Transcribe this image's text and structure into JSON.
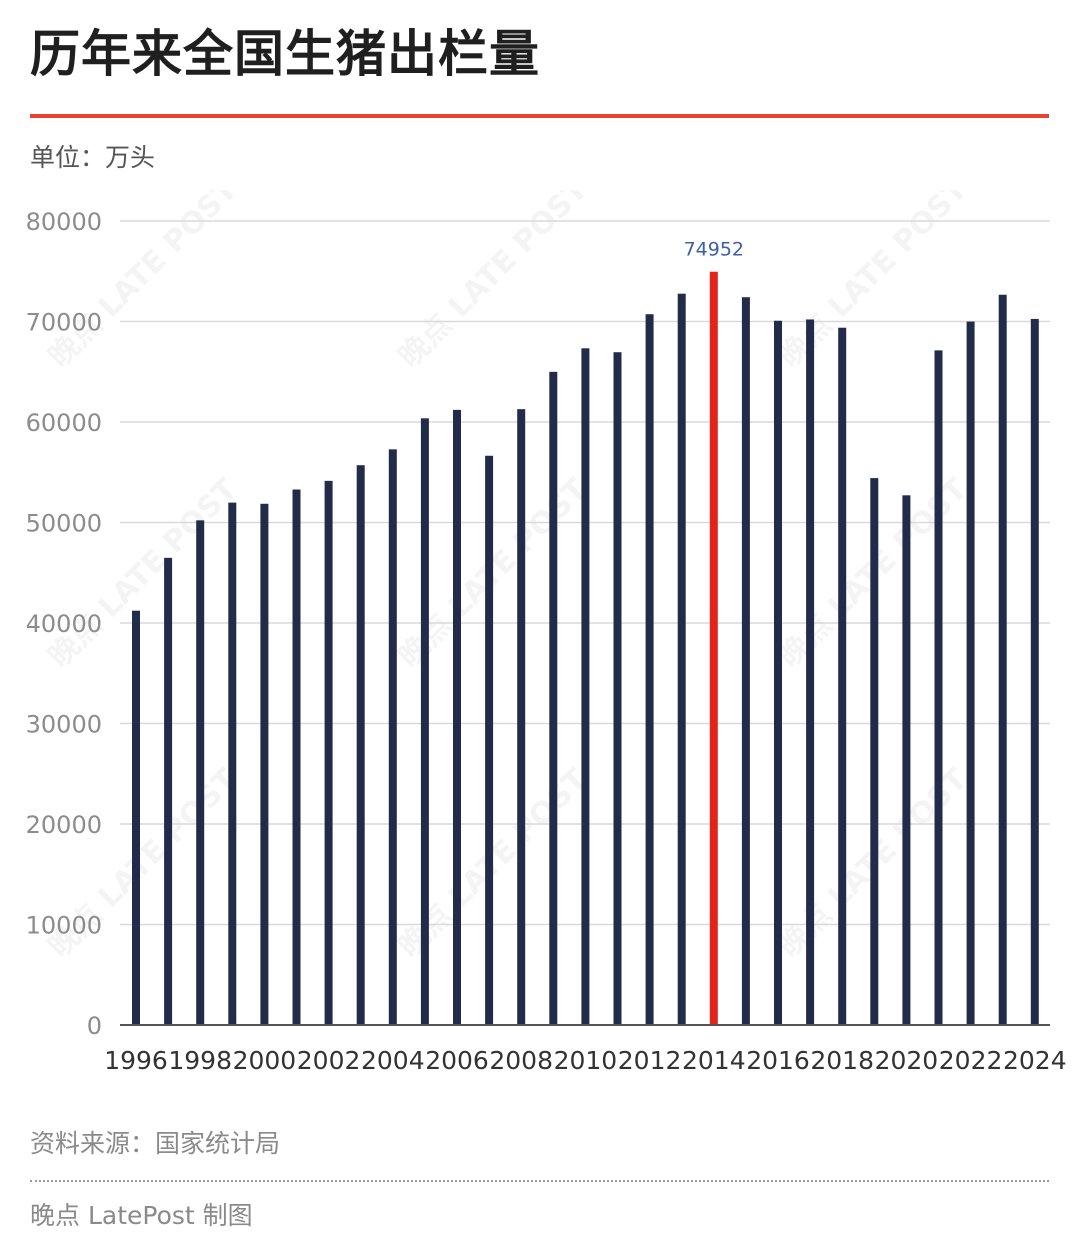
{
  "header": {
    "title": "历年来全国生猪出栏量",
    "unit": "单位：万头"
  },
  "footer": {
    "source": "资料来源：国家统计局",
    "credit": "晚点 LatePost 制图"
  },
  "chart_data": {
    "type": "bar",
    "title": "历年来全国生猪出栏量",
    "ylabel": "万头",
    "ylim": [
      0,
      80000
    ],
    "yticks": [
      0,
      10000,
      20000,
      30000,
      40000,
      50000,
      60000,
      70000,
      80000
    ],
    "grid": true,
    "categories": [
      "1996",
      "1997",
      "1998",
      "1999",
      "2000",
      "2001",
      "2002",
      "2003",
      "2004",
      "2005",
      "2006",
      "2007",
      "2008",
      "2009",
      "2010",
      "2011",
      "2012",
      "2013",
      "2014",
      "2015",
      "2016",
      "2017",
      "2018",
      "2019",
      "2020",
      "2021",
      "2022",
      "2023",
      "2024"
    ],
    "xtick_labels": [
      "1996",
      "1998",
      "2000",
      "2002",
      "2004",
      "2006",
      "2008",
      "2010",
      "2012",
      "2014",
      "2016",
      "2018",
      "2020",
      "2022",
      "2024"
    ],
    "values": [
      41225,
      46484,
      50215,
      51977,
      51862,
      53281,
      54144,
      55702,
      57279,
      60367,
      61207,
      56641,
      61278,
      64991,
      67332,
      66943,
      70725,
      72768,
      74952,
      72416,
      70074,
      70202,
      69382,
      54419,
      52704,
      67128,
      69995,
      72662,
      70256
    ],
    "highlight": {
      "category": "2014",
      "value": 74952,
      "label": "74952"
    },
    "colors": {
      "bar": "#232b4a",
      "highlight": "#e1231b",
      "highlight_label": "#3d5ea8",
      "grid": "#d9d9d9",
      "tick": "#8c8c8c",
      "xtick": "#333333"
    },
    "watermark": "晚点 LATE POST"
  }
}
